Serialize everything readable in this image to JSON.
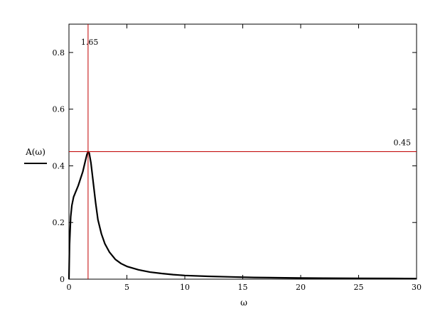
{
  "chart_data": {
    "type": "line",
    "title": "",
    "xlabel": "ω",
    "ylabel": "A(ω)",
    "xlim": [
      0,
      30
    ],
    "ylim": [
      0,
      0.9
    ],
    "x_ticks": [
      0,
      5,
      10,
      15,
      20,
      25,
      30
    ],
    "y_ticks": [
      0,
      0.2,
      0.4,
      0.6,
      0.8
    ],
    "y_tick_labels": [
      "0",
      "0.2",
      "0.4",
      "0.6",
      "0.8"
    ],
    "grid": false,
    "legend": "left",
    "series": [
      {
        "name": "A(ω)",
        "color": "#000000",
        "x": [
          0,
          0.05,
          0.15,
          0.25,
          0.4,
          0.6,
          0.8,
          1.0,
          1.2,
          1.4,
          1.55,
          1.65,
          1.75,
          1.9,
          2.1,
          2.3,
          2.5,
          2.8,
          3.1,
          3.5,
          4.0,
          4.5,
          5.0,
          6.0,
          7.0,
          8.0,
          9.0,
          10.0,
          12.0,
          14.0,
          16.0,
          18.0,
          20.0,
          22.0,
          25.0,
          28.0,
          30.0
        ],
        "y": [
          0.0,
          0.12,
          0.22,
          0.26,
          0.29,
          0.31,
          0.33,
          0.355,
          0.38,
          0.415,
          0.44,
          0.45,
          0.445,
          0.41,
          0.34,
          0.27,
          0.21,
          0.16,
          0.125,
          0.095,
          0.07,
          0.055,
          0.045,
          0.033,
          0.025,
          0.02,
          0.016,
          0.013,
          0.01,
          0.008,
          0.006,
          0.005,
          0.004,
          0.0035,
          0.003,
          0.0025,
          0.002
        ]
      }
    ],
    "markers": {
      "vertical": {
        "x": 1.65,
        "label": "1.65",
        "color": "#c00000"
      },
      "horizontal": {
        "y": 0.45,
        "label": "0.45",
        "color": "#c00000"
      }
    }
  }
}
